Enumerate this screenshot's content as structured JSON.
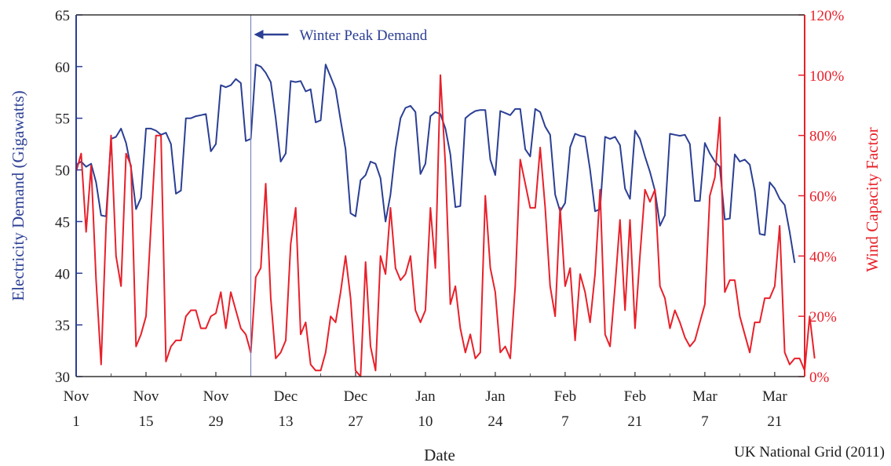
{
  "chart_data": {
    "type": "line",
    "title": "",
    "xlabel": "Date",
    "ylabel": "Electricity Demand (Gigawatts)",
    "y2label": "Wind Capacity Factor",
    "ylim": [
      30,
      65
    ],
    "y2lim": [
      0,
      120
    ],
    "yticks": [
      30,
      35,
      40,
      45,
      50,
      55,
      60,
      65
    ],
    "y2ticks": [
      "0%",
      "20%",
      "40%",
      "60%",
      "80%",
      "100%",
      "120%"
    ],
    "xticks": [
      {
        "line1": "Nov",
        "line2": "1",
        "day": 0
      },
      {
        "line1": "Nov",
        "line2": "15",
        "day": 14
      },
      {
        "line1": "Nov",
        "line2": "29",
        "day": 28
      },
      {
        "line1": "Dec",
        "line2": "13",
        "day": 42
      },
      {
        "line1": "Dec",
        "line2": "27",
        "day": 56
      },
      {
        "line1": "Jan",
        "line2": "10",
        "day": 70
      },
      {
        "line1": "Jan",
        "line2": "24",
        "day": 84
      },
      {
        "line1": "Feb",
        "line2": "7",
        "day": 98
      },
      {
        "line1": "Feb",
        "line2": "21",
        "day": 112
      },
      {
        "line1": "Mar",
        "line2": "7",
        "day": 126
      },
      {
        "line1": "Mar",
        "line2": "21",
        "day": 140
      }
    ],
    "xlim": [
      0,
      146
    ],
    "grid": false,
    "annotation": {
      "text": "Winter Peak Demand",
      "day": 35
    },
    "source": "UK National Grid (2011)",
    "colors": {
      "demand": "#2b3f94",
      "wind": "#e8202a",
      "axis_left": "#2b3f94",
      "axis_right": "#e8202a"
    },
    "series": [
      {
        "axis": "left",
        "values": [
          50.5,
          50.8,
          50.3,
          50.6,
          48.8,
          45.6,
          45.5,
          53.0,
          53.2,
          54.0,
          52.6,
          50.2,
          46.2,
          47.3,
          54.0,
          54.0,
          53.8,
          53.4,
          53.6,
          52.5,
          47.7,
          48.0,
          55.0,
          55.0,
          55.2,
          55.3,
          55.4,
          51.8,
          52.5,
          58.2,
          58.0,
          58.2,
          58.8,
          58.4,
          52.8,
          53.0,
          60.2,
          60.0,
          59.4,
          58.5,
          55.0,
          50.8,
          51.6,
          58.6,
          58.5,
          58.6,
          57.6,
          57.8,
          54.6,
          54.8,
          60.2,
          59.0,
          57.8,
          54.8,
          52.0,
          45.8,
          45.5,
          49.0,
          49.5,
          50.8,
          50.6,
          49.2,
          45.0,
          47.6,
          52.0,
          55.0,
          56.0,
          56.2,
          55.6,
          49.6,
          50.6,
          55.2,
          55.6,
          55.4,
          54.0,
          51.5,
          46.4,
          46.5,
          55.0,
          55.4,
          55.7,
          55.8,
          55.8,
          51.0,
          49.5,
          55.7,
          55.5,
          55.3,
          55.9,
          55.9,
          52.0,
          51.3,
          55.9,
          55.6,
          54.2,
          53.4,
          47.6,
          46.0,
          46.8,
          52.2,
          53.5,
          53.3,
          53.2,
          50.0,
          46.0,
          46.2,
          53.2,
          53.0,
          53.2,
          52.4,
          48.2,
          47.2,
          53.8,
          53.0,
          51.3,
          49.8,
          48.0,
          44.6,
          45.6,
          53.5,
          53.4,
          53.3,
          53.4,
          52.5,
          47.0,
          47.0,
          52.6,
          51.6,
          50.8,
          50.3,
          45.2,
          45.3,
          51.5,
          50.8,
          51.0,
          50.5,
          48.0,
          43.8,
          43.7,
          48.8,
          48.2,
          47.2,
          46.6,
          44.0,
          41.0
        ]
      },
      {
        "axis": "right",
        "values": [
          68,
          74,
          48,
          70,
          32,
          4,
          50,
          80,
          40,
          30,
          74,
          70,
          10,
          14,
          20,
          50,
          80,
          80,
          5,
          10,
          12,
          12,
          20,
          22,
          22,
          16,
          16,
          20,
          21,
          28,
          16,
          28,
          22,
          16,
          14,
          8,
          33,
          36,
          64,
          26,
          6,
          8,
          12,
          44,
          56,
          14,
          18,
          4,
          2,
          2,
          8,
          20,
          18,
          28,
          40,
          26,
          2,
          0,
          38,
          10,
          2,
          40,
          34,
          56,
          36,
          32,
          34,
          40,
          22,
          18,
          22,
          56,
          36,
          100,
          70,
          24,
          30,
          16,
          8,
          14,
          6,
          8,
          60,
          36,
          28,
          8,
          10,
          6,
          30,
          72,
          64,
          56,
          56,
          76,
          56,
          30,
          20,
          56,
          30,
          36,
          12,
          34,
          28,
          18,
          34,
          62,
          14,
          10,
          30,
          52,
          22,
          52,
          16,
          40,
          62,
          58,
          62,
          30,
          26,
          16,
          22,
          18,
          13,
          10,
          12,
          18,
          24,
          60,
          66,
          86,
          28,
          32,
          32,
          20,
          14,
          8,
          18,
          18,
          26,
          26,
          30,
          50,
          8,
          4,
          6,
          6,
          2,
          20,
          6
        ]
      }
    ]
  }
}
